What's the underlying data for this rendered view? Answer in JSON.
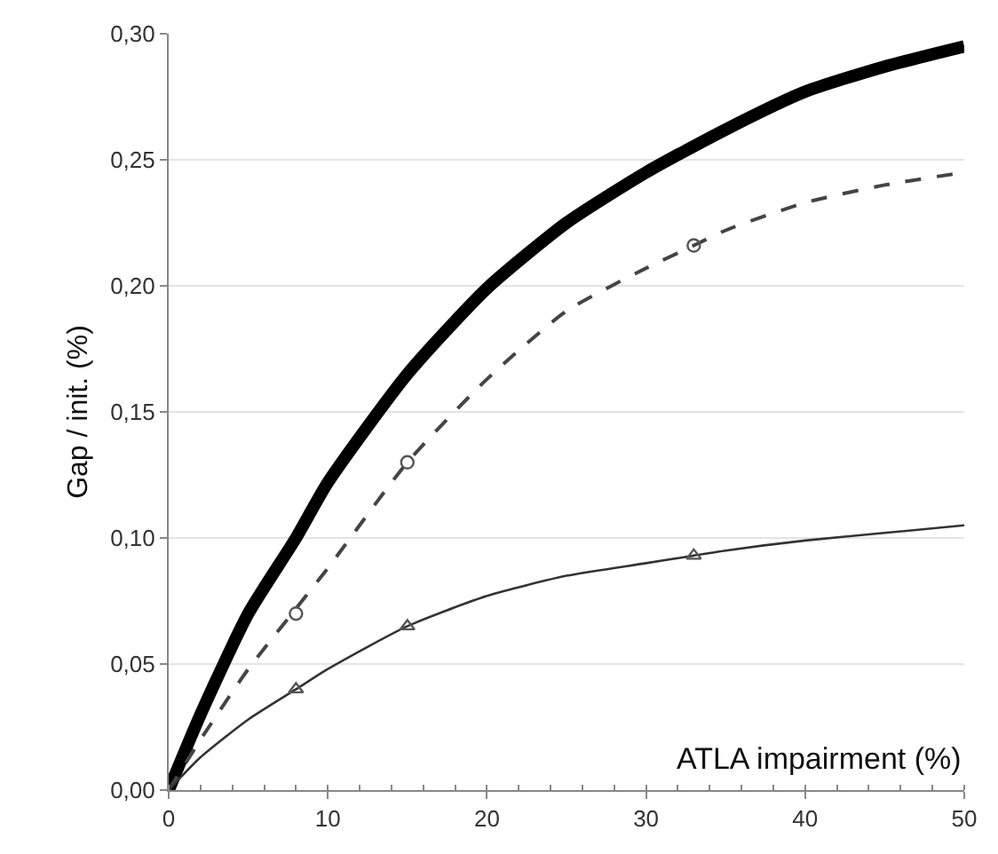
{
  "chart_data": {
    "type": "line",
    "xlabel": "ATLA impairment (%)",
    "ylabel": "Gap / init. (%)",
    "xlim": [
      0,
      50
    ],
    "xticks": [
      0,
      10,
      20,
      30,
      40,
      50
    ],
    "ylim": [
      0,
      0.3
    ],
    "yticks": [
      {
        "value": 0,
        "label": "0,00"
      },
      {
        "value": 0.05,
        "label": "0,05"
      },
      {
        "value": 0.1,
        "label": "0,10"
      },
      {
        "value": 0.15,
        "label": "0,15"
      },
      {
        "value": 0.2,
        "label": "0,20"
      },
      {
        "value": 0.25,
        "label": "0,25"
      },
      {
        "value": 0.3,
        "label": "0,30"
      }
    ],
    "grid": "y",
    "marker": "none",
    "series": [
      {
        "color": "#000000",
        "line_style": "solid",
        "x": [
          0,
          2,
          5,
          8,
          10,
          15,
          20,
          25,
          30,
          35,
          40,
          45,
          50
        ],
        "values": [
          0,
          0.03,
          0.07,
          0.1,
          0.122,
          0.165,
          0.199,
          0.225,
          0.245,
          0.262,
          0.277,
          0.287,
          0.295
        ]
      },
      {
        "color": "#444444",
        "line_style": "dashed",
        "x": [
          0,
          2,
          5,
          8,
          10,
          15,
          20,
          25,
          30,
          33,
          35,
          40,
          45,
          50
        ],
        "values": [
          0,
          0.02,
          0.048,
          0.072,
          0.088,
          0.13,
          0.163,
          0.19,
          0.207,
          0.216,
          0.222,
          0.233,
          0.24,
          0.245
        ]
      },
      {
        "color": "#333333",
        "line_style": "solid",
        "x": [
          0,
          2,
          5,
          8,
          10,
          15,
          20,
          25,
          30,
          33,
          35,
          40,
          45,
          50
        ],
        "values": [
          0,
          0.013,
          0.028,
          0.04,
          0.048,
          0.065,
          0.077,
          0.085,
          0.09,
          0.093,
          0.095,
          0.099,
          0.102,
          0.105
        ]
      },
      {
        "type": "scatter",
        "marker": "circle",
        "color": "#555555",
        "x": [
          8,
          15,
          33
        ],
        "values": [
          0.07,
          0.13,
          0.216
        ]
      },
      {
        "type": "scatter",
        "marker": "triangle",
        "color": "#555555",
        "x": [
          8,
          15,
          33
        ],
        "values": [
          0.04,
          0.065,
          0.093
        ]
      }
    ]
  }
}
